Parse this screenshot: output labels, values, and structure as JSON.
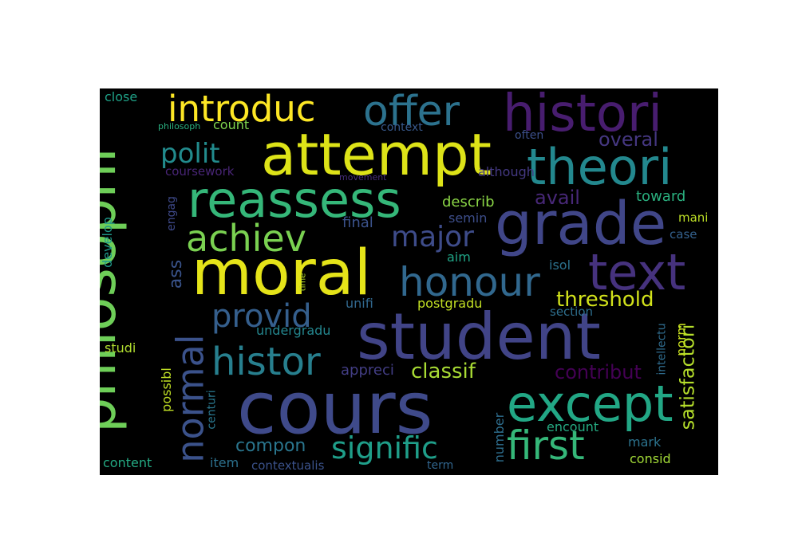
{
  "wordcloud": {
    "background": "#000000",
    "words": [
      {
        "text": "cours",
        "color": "#3f4a8a"
      },
      {
        "text": "student",
        "color": "#414487"
      },
      {
        "text": "moral",
        "color": "#e5e419"
      },
      {
        "text": "philosophi",
        "color": "#6ece58"
      },
      {
        "text": "attempt",
        "color": "#dde318"
      },
      {
        "text": "grade",
        "color": "#404688"
      },
      {
        "text": "histori",
        "color": "#481d6f"
      },
      {
        "text": "reassess",
        "color": "#35b779"
      },
      {
        "text": "theori",
        "color": "#23888e"
      },
      {
        "text": "text",
        "color": "#46327e"
      },
      {
        "text": "except",
        "color": "#22a785"
      },
      {
        "text": "introduc",
        "color": "#fde725"
      },
      {
        "text": "offer",
        "color": "#2c728e"
      },
      {
        "text": "honour",
        "color": "#31688e"
      },
      {
        "text": "achiev",
        "color": "#7ad151"
      },
      {
        "text": "histor",
        "color": "#277f8e"
      },
      {
        "text": "first",
        "color": "#35b779"
      },
      {
        "text": "normal",
        "color": "#3b528b"
      },
      {
        "text": "major",
        "color": "#3e4c8a"
      },
      {
        "text": "provid",
        "color": "#355f8d"
      },
      {
        "text": "signific",
        "color": "#1f9e89"
      },
      {
        "text": "polit",
        "color": "#228b8d"
      },
      {
        "text": "threshold",
        "color": "#d2e21b"
      },
      {
        "text": "classif",
        "color": "#a8db34"
      },
      {
        "text": "satisfactori",
        "color": "#b5de2b"
      },
      {
        "text": "contribut",
        "color": "#440154"
      },
      {
        "text": "overal",
        "color": "#453781"
      },
      {
        "text": "avail",
        "color": "#482878"
      },
      {
        "text": "compon",
        "color": "#2a768e"
      },
      {
        "text": "close",
        "color": "#1fa187"
      },
      {
        "text": "philosoph",
        "color": "#29af7f"
      },
      {
        "text": "count",
        "color": "#7fd34e"
      },
      {
        "text": "context",
        "color": "#38598c"
      },
      {
        "text": "often",
        "color": "#3c508b"
      },
      {
        "text": "coursework",
        "color": "#482576"
      },
      {
        "text": "movement",
        "color": "#472d7b"
      },
      {
        "text": "although",
        "color": "#443983"
      },
      {
        "text": "describ",
        "color": "#8bd646"
      },
      {
        "text": "toward",
        "color": "#2ab07f"
      },
      {
        "text": "semin",
        "color": "#3d4e8a"
      },
      {
        "text": "engag",
        "color": "#3e4989"
      },
      {
        "text": "final",
        "color": "#3b528b"
      },
      {
        "text": "mani",
        "color": "#bddf26"
      },
      {
        "text": "case",
        "color": "#34618d"
      },
      {
        "text": "develop",
        "color": "#1f998a"
      },
      {
        "text": "ass",
        "color": "#3a548c"
      },
      {
        "text": "aim",
        "color": "#20a486"
      },
      {
        "text": "isol",
        "color": "#2c728e"
      },
      {
        "text": "time",
        "color": "#b8de29"
      },
      {
        "text": "unifi",
        "color": "#31688e"
      },
      {
        "text": "postgradu",
        "color": "#c2df23"
      },
      {
        "text": "intellectu",
        "color": "#2f6c8e"
      },
      {
        "text": "section",
        "color": "#2e6f8e"
      },
      {
        "text": "undergradu",
        "color": "#24868e"
      },
      {
        "text": "norm",
        "color": "#cae11f"
      },
      {
        "text": "studi",
        "color": "#b0dd2f"
      },
      {
        "text": "appreci",
        "color": "#433e85"
      },
      {
        "text": "possibl",
        "color": "#c0df25"
      },
      {
        "text": "centuri",
        "color": "#2a778e"
      },
      {
        "text": "encount",
        "color": "#25ab82"
      },
      {
        "text": "number",
        "color": "#2e6e8e"
      },
      {
        "text": "mark",
        "color": "#2c738e"
      },
      {
        "text": "consid",
        "color": "#a2da37"
      },
      {
        "text": "content",
        "color": "#24aa83"
      },
      {
        "text": "item",
        "color": "#2c718e"
      },
      {
        "text": "contextualis",
        "color": "#3b528b"
      },
      {
        "text": "term",
        "color": "#31668e"
      }
    ]
  }
}
